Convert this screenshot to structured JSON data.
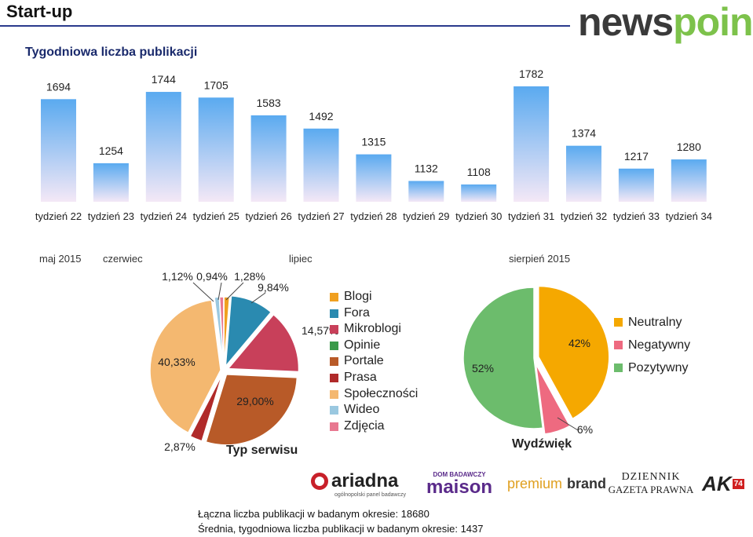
{
  "header": {
    "title": "Start-up",
    "logo_part1": "news",
    "logo_part2": "point",
    "subtitle": "Tygodniowa liczba publikacji"
  },
  "periods": [
    "maj 2015",
    "czerwiec",
    "lipiec",
    "sierpień 2015"
  ],
  "chart_data": [
    {
      "type": "bar",
      "title": "Tygodniowa liczba publikacji",
      "categories": [
        "tydzień 22",
        "tydzień 23",
        "tydzień 24",
        "tydzień 25",
        "tydzień 26",
        "tydzień 27",
        "tydzień 28",
        "tydzień 29",
        "tydzień 30",
        "tydzień 31",
        "tydzień 32",
        "tydzień 33",
        "tydzień 34"
      ],
      "values": [
        1694,
        1254,
        1744,
        1705,
        1583,
        1492,
        1315,
        1132,
        1108,
        1782,
        1374,
        1217,
        1280
      ],
      "colors": {
        "top": "#5aaaf0",
        "bottom": "#f4e8f6"
      }
    },
    {
      "type": "pie",
      "title": "Typ serwisu",
      "labels": [
        "Blogi",
        "Fora",
        "Mikroblogi",
        "Opinie",
        "Portale",
        "Prasa",
        "Społeczności",
        "Wideo",
        "Zdjęcia"
      ],
      "values": [
        1.28,
        9.84,
        14.57,
        0,
        29.0,
        2.87,
        40.33,
        1.12,
        0.94
      ],
      "value_labels": [
        "1,28%",
        "9,84%",
        "14,57%",
        "",
        "29,00%",
        "2,87%",
        "40,33%",
        "1,12%",
        "0,94%"
      ],
      "colors": [
        "#f0a020",
        "#2a8ab0",
        "#c8405a",
        "#3a9a4a",
        "#b85a28",
        "#b02a2a",
        "#f4b870",
        "#9ac8e0",
        "#e87890"
      ]
    },
    {
      "type": "pie",
      "title": "Wydźwięk",
      "labels": [
        "Neutralny",
        "Negatywny",
        "Pozytywny"
      ],
      "values": [
        42,
        6,
        52
      ],
      "value_labels": [
        "42%",
        "6%",
        "52%"
      ],
      "colors": [
        "#f5a800",
        "#ee6a80",
        "#6cbc6c"
      ]
    }
  ],
  "partners": [
    "ariadna",
    "ogólnopolski panel badawczy",
    "DOM BADAWCZY",
    "maison",
    "premium",
    "brand",
    "DZIENNIK",
    "GAZETA PRAWNA",
    "AK",
    "74"
  ],
  "footer": {
    "line1": "Łączna liczba publikacji w badanym okresie: 18680",
    "line2": "Średnia, tygodniowa liczba publikacji w badanym okresie: 1437"
  }
}
